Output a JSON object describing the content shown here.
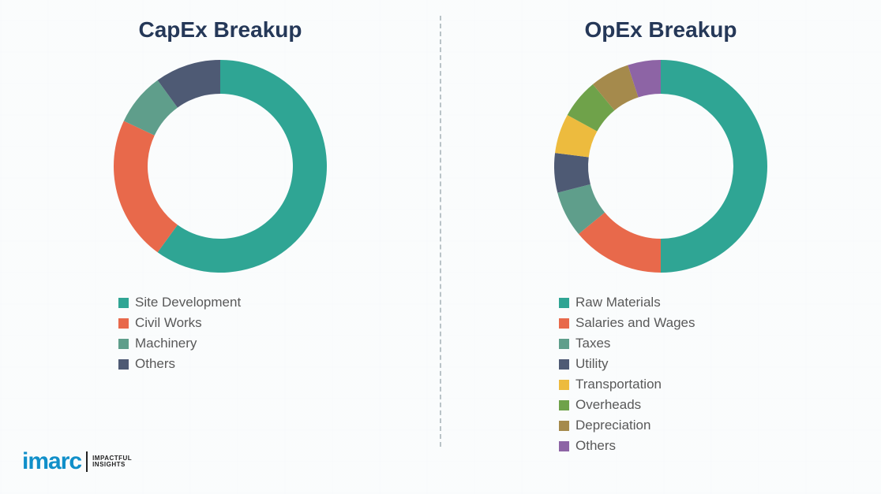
{
  "background_color": "#f5f7f8",
  "divider_color": "#b9c3c7",
  "title_color": "#253858",
  "legend_text_color": "#595959",
  "donut": {
    "outer_radius": 135,
    "inner_radius": 92,
    "start_angle_deg": 0
  },
  "capex": {
    "title": "CapEx Breakup",
    "type": "donut",
    "slices": [
      {
        "label": "Site Development",
        "value": 60,
        "color": "#2fa594"
      },
      {
        "label": "Civil Works",
        "value": 22,
        "color": "#e8694b"
      },
      {
        "label": "Machinery",
        "value": 8,
        "color": "#5f9e8b"
      },
      {
        "label": "Others",
        "value": 10,
        "color": "#4e5a74"
      }
    ]
  },
  "opex": {
    "title": "OpEx Breakup",
    "type": "donut",
    "slices": [
      {
        "label": "Raw Materials",
        "value": 50,
        "color": "#2fa594"
      },
      {
        "label": "Salaries and Wages",
        "value": 14,
        "color": "#e8694b"
      },
      {
        "label": "Taxes",
        "value": 7,
        "color": "#5f9e8b"
      },
      {
        "label": "Utility",
        "value": 6,
        "color": "#4e5a74"
      },
      {
        "label": "Transportation",
        "value": 6,
        "color": "#edbb3e"
      },
      {
        "label": "Overheads",
        "value": 6,
        "color": "#6fa24a"
      },
      {
        "label": "Depreciation",
        "value": 6,
        "color": "#a58a4c"
      },
      {
        "label": "Others",
        "value": 5,
        "color": "#8d64a5"
      }
    ]
  },
  "logo": {
    "mark": "imarc",
    "tag_line1": "IMPACTFUL",
    "tag_line2": "INSIGHTS",
    "mark_color": "#108fc9"
  }
}
